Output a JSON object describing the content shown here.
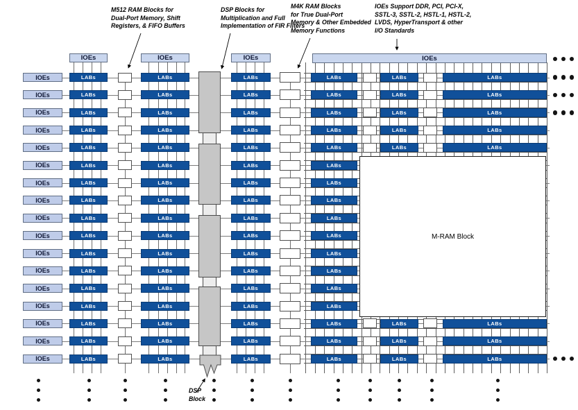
{
  "diagram": {
    "annotations": {
      "m512": {
        "text": "M512 RAM Blocks for\nDual-Port Memory, Shift\nRegisters, & FIFO Buffers"
      },
      "dsp": {
        "text": "DSP Blocks for\nMultiplication and Full\nImplementation of FIR Filters"
      },
      "m4k": {
        "text": "M4K RAM Blocks\nfor True Dual-Port\nMemory & Other Embedded\nMemory Functions"
      },
      "ioe": {
        "text": "IOEs Support DDR, PCI, PCI-X,\nSSTL-3, SSTL-2, HSTL-1, HSTL-2,\nLVDS, HyperTransport & other\nI/O Standards"
      }
    },
    "labels": {
      "ioe": "IOEs",
      "lab": "LABs",
      "mram": "M-RAM Block",
      "dsp_block": "DSP\nBlock"
    },
    "structure": {
      "rows": 17,
      "columns": [
        {
          "type": "ioe",
          "label": "IOEs"
        },
        {
          "type": "lab",
          "label": "LABs"
        },
        {
          "type": "m512-ram-block"
        },
        {
          "type": "lab",
          "label": "LABs"
        },
        {
          "type": "dsp-column"
        },
        {
          "type": "lab",
          "label": "LABs"
        },
        {
          "type": "m4k-ram-block"
        },
        {
          "type": "lab",
          "label": "LABs"
        },
        {
          "type": "ram-block"
        },
        {
          "type": "lab",
          "label": "LABs"
        },
        {
          "type": "ram-block"
        },
        {
          "type": "lab",
          "label": "LABs"
        }
      ],
      "top_io_banks": 4,
      "mram_block_span_rows": "6-14"
    },
    "colors": {
      "lab_fill": "#10509a",
      "ioe_fill": "#bfcce9",
      "io_bar_fill": "#c9d6ee",
      "dsp_fill": "#c6c6c6",
      "ram_fill": "#ffffff",
      "line_gray": "#6e6e6e",
      "text": "#000000"
    }
  }
}
